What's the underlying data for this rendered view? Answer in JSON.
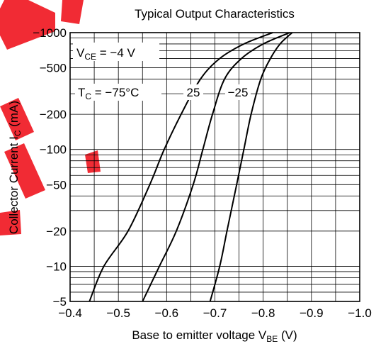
{
  "chart_data": {
    "type": "line",
    "title": "Typical Output Characteristics",
    "xlabel": "Base to emitter voltage",
    "xlabel_symbol": "V",
    "xlabel_sub": "BE",
    "xlabel_unit": "(V)",
    "ylabel": "Collector Current",
    "ylabel_symbol": "I",
    "ylabel_sub": "C",
    "ylabel_unit": "(mA)",
    "x_scale": "linear",
    "y_scale": "log",
    "xlim": [
      -0.4,
      -1.0
    ],
    "ylim": [
      -5,
      -1000
    ],
    "x_ticks": [
      -0.4,
      -0.5,
      -0.6,
      -0.7,
      -0.8,
      -0.9,
      -1.0
    ],
    "x_tick_labels": [
      "−0.4",
      "−0.5",
      "−0.6",
      "−0.7",
      "−0.8",
      "−0.9",
      "−1.0"
    ],
    "y_ticks": [
      -5,
      -10,
      -20,
      -50,
      -100,
      -200,
      -500,
      -1000
    ],
    "y_tick_labels": [
      "−5",
      "−10",
      "−20",
      "−50",
      "−100",
      "−200",
      "−500",
      "−1000"
    ],
    "grid": true,
    "condition": {
      "symbol": "V",
      "sub": "CE",
      "text": " = −4 V"
    },
    "temperature_labels": [
      {
        "symbol": "T",
        "sub": "C",
        "text": " = −75°C",
        "series": 0
      },
      {
        "text": "25",
        "series": 1
      },
      {
        "text": "−25",
        "series": 2
      }
    ],
    "series": [
      {
        "values": [
          [
            -0.44,
            -5
          ],
          [
            -0.47,
            -10
          ],
          [
            -0.52,
            -20
          ],
          [
            -0.565,
            -50
          ],
          [
            -0.595,
            -100
          ],
          [
            -0.63,
            -200
          ],
          [
            -0.67,
            -400
          ],
          [
            -0.71,
            -600
          ],
          [
            -0.76,
            -800
          ],
          [
            -0.82,
            -1000
          ]
        ]
      },
      {
        "values": [
          [
            -0.55,
            -5
          ],
          [
            -0.585,
            -10
          ],
          [
            -0.62,
            -20
          ],
          [
            -0.655,
            -50
          ],
          [
            -0.675,
            -100
          ],
          [
            -0.695,
            -200
          ],
          [
            -0.72,
            -400
          ],
          [
            -0.755,
            -600
          ],
          [
            -0.8,
            -800
          ],
          [
            -0.855,
            -1000
          ]
        ]
      },
      {
        "values": [
          [
            -0.69,
            -5
          ],
          [
            -0.71,
            -10
          ],
          [
            -0.725,
            -20
          ],
          [
            -0.745,
            -50
          ],
          [
            -0.76,
            -100
          ],
          [
            -0.775,
            -200
          ],
          [
            -0.795,
            -400
          ],
          [
            -0.815,
            -600
          ],
          [
            -0.835,
            -800
          ],
          [
            -0.86,
            -1000
          ]
        ]
      }
    ]
  }
}
